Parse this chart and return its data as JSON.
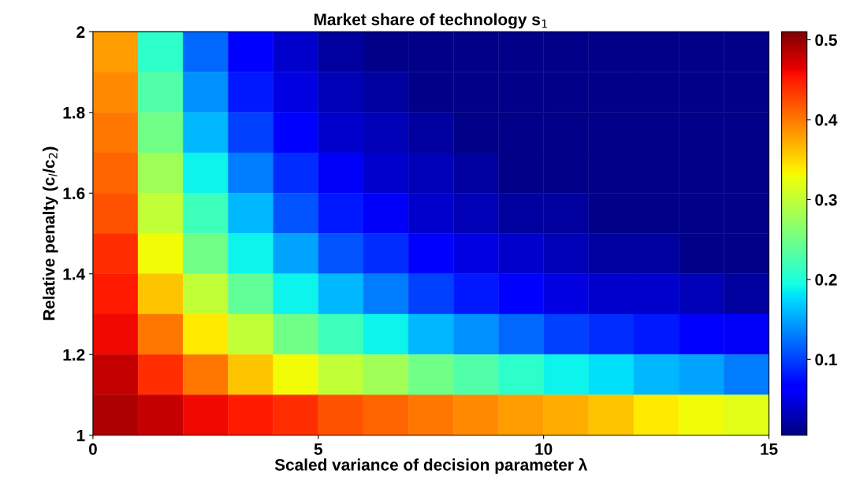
{
  "chart_data": {
    "type": "heatmap",
    "title": "Market share of technology s$_{1}$",
    "xlabel": "Scaled variance of decision parameter λ",
    "ylabel": "Relative penalty (c$_{l}$/c$_{2}$)",
    "x": [
      0.5,
      1.5,
      2.5,
      3.5,
      4.5,
      5.5,
      6.5,
      7.5,
      8.5,
      9.5,
      10.5,
      11.5,
      12.5,
      13.5,
      14.5
    ],
    "y": [
      1.95,
      1.85,
      1.75,
      1.65,
      1.55,
      1.45,
      1.35,
      1.25,
      1.15,
      1.05
    ],
    "xlim": [
      0,
      15
    ],
    "ylim": [
      1,
      2
    ],
    "xticks": [
      0,
      5,
      10,
      15
    ],
    "yticks": [
      1,
      1.2,
      1.4,
      1.6,
      1.8,
      2
    ],
    "clim": [
      0.005,
      0.51
    ],
    "cticks": [
      0.1,
      0.2,
      0.3,
      0.4,
      0.5
    ],
    "cells": [
      [
        0.38,
        0.21,
        0.12,
        0.07,
        0.04,
        0.02,
        0.01,
        0.01,
        0.01,
        0.01,
        0.01,
        0.01,
        0.01,
        0.01,
        0.01
      ],
      [
        0.39,
        0.23,
        0.14,
        0.08,
        0.05,
        0.03,
        0.02,
        0.01,
        0.01,
        0.01,
        0.01,
        0.01,
        0.01,
        0.01,
        0.01
      ],
      [
        0.4,
        0.25,
        0.16,
        0.1,
        0.07,
        0.04,
        0.03,
        0.02,
        0.01,
        0.01,
        0.01,
        0.01,
        0.01,
        0.01,
        0.01
      ],
      [
        0.41,
        0.28,
        0.19,
        0.13,
        0.09,
        0.06,
        0.04,
        0.03,
        0.02,
        0.01,
        0.01,
        0.01,
        0.01,
        0.01,
        0.01
      ],
      [
        0.42,
        0.3,
        0.22,
        0.16,
        0.11,
        0.08,
        0.06,
        0.04,
        0.03,
        0.02,
        0.02,
        0.01,
        0.01,
        0.01,
        0.01
      ],
      [
        0.44,
        0.33,
        0.25,
        0.19,
        0.15,
        0.11,
        0.09,
        0.07,
        0.05,
        0.04,
        0.03,
        0.02,
        0.02,
        0.01,
        0.01
      ],
      [
        0.45,
        0.36,
        0.3,
        0.24,
        0.19,
        0.16,
        0.13,
        0.1,
        0.08,
        0.07,
        0.05,
        0.04,
        0.04,
        0.03,
        0.02
      ],
      [
        0.46,
        0.4,
        0.34,
        0.3,
        0.25,
        0.22,
        0.19,
        0.16,
        0.14,
        0.12,
        0.1,
        0.09,
        0.08,
        0.07,
        0.06
      ],
      [
        0.48,
        0.44,
        0.4,
        0.36,
        0.33,
        0.3,
        0.28,
        0.25,
        0.23,
        0.21,
        0.19,
        0.18,
        0.16,
        0.15,
        0.13
      ],
      [
        0.49,
        0.48,
        0.46,
        0.45,
        0.44,
        0.42,
        0.41,
        0.4,
        0.39,
        0.38,
        0.37,
        0.36,
        0.34,
        0.33,
        0.32
      ]
    ]
  }
}
